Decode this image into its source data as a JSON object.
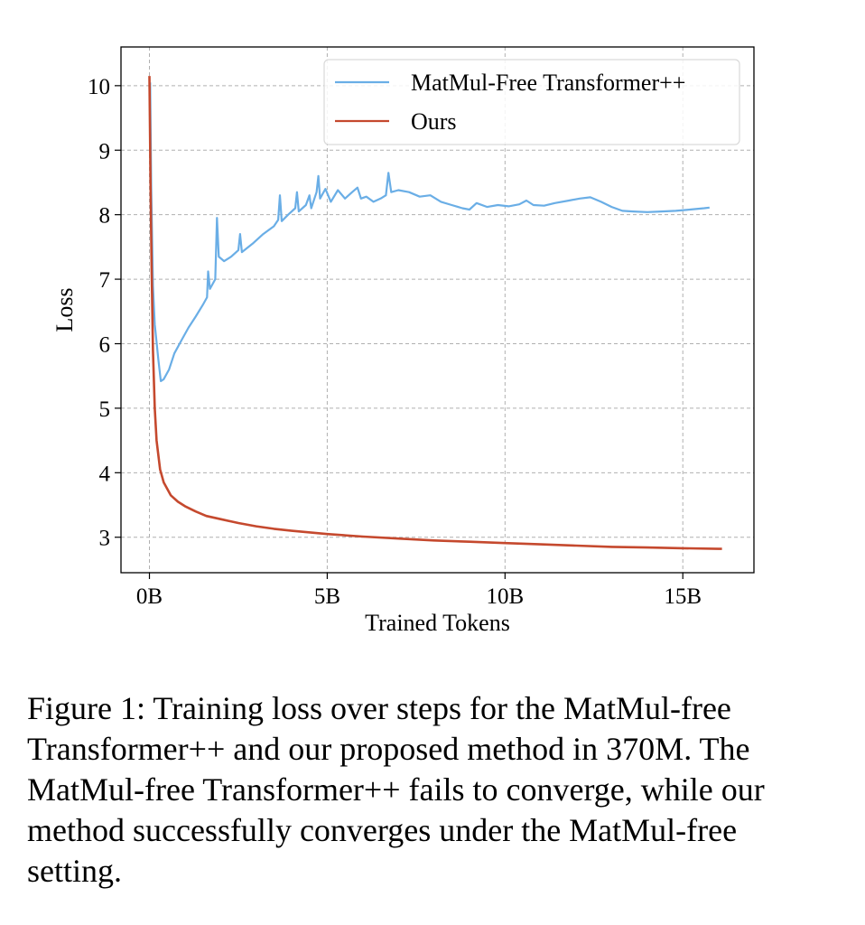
{
  "chart_data": {
    "type": "line",
    "xlabel": "Trained Tokens",
    "ylabel": "Loss",
    "xlim": [
      -0.8,
      17.0
    ],
    "ylim": [
      2.45,
      10.6
    ],
    "x_ticks": [
      0,
      5,
      10,
      15
    ],
    "x_tick_labels": [
      "0B",
      "5B",
      "10B",
      "15B"
    ],
    "y_ticks": [
      3,
      4,
      5,
      6,
      7,
      8,
      9,
      10
    ],
    "y_tick_labels": [
      "3",
      "4",
      "5",
      "6",
      "7",
      "8",
      "9",
      "10"
    ],
    "grid": true,
    "legend_position": "top-right",
    "series": [
      {
        "name": "MatMul-Free Transformer++",
        "color": "#6aaee6",
        "points": [
          [
            0.02,
            10.05
          ],
          [
            0.05,
            8.4
          ],
          [
            0.1,
            6.9
          ],
          [
            0.15,
            6.3
          ],
          [
            0.25,
            5.75
          ],
          [
            0.32,
            5.42
          ],
          [
            0.4,
            5.45
          ],
          [
            0.55,
            5.6
          ],
          [
            0.7,
            5.85
          ],
          [
            0.9,
            6.05
          ],
          [
            1.1,
            6.25
          ],
          [
            1.3,
            6.42
          ],
          [
            1.5,
            6.6
          ],
          [
            1.62,
            6.72
          ],
          [
            1.65,
            7.12
          ],
          [
            1.7,
            6.85
          ],
          [
            1.85,
            7.0
          ],
          [
            1.9,
            7.95
          ],
          [
            1.95,
            7.35
          ],
          [
            2.1,
            7.28
          ],
          [
            2.3,
            7.35
          ],
          [
            2.5,
            7.45
          ],
          [
            2.55,
            7.7
          ],
          [
            2.6,
            7.42
          ],
          [
            2.9,
            7.55
          ],
          [
            3.2,
            7.7
          ],
          [
            3.5,
            7.82
          ],
          [
            3.62,
            7.92
          ],
          [
            3.67,
            8.3
          ],
          [
            3.72,
            7.9
          ],
          [
            3.9,
            8.0
          ],
          [
            4.1,
            8.1
          ],
          [
            4.15,
            8.35
          ],
          [
            4.2,
            8.05
          ],
          [
            4.4,
            8.15
          ],
          [
            4.5,
            8.3
          ],
          [
            4.55,
            8.1
          ],
          [
            4.7,
            8.35
          ],
          [
            4.75,
            8.6
          ],
          [
            4.8,
            8.25
          ],
          [
            4.95,
            8.4
          ],
          [
            5.1,
            8.2
          ],
          [
            5.3,
            8.38
          ],
          [
            5.5,
            8.25
          ],
          [
            5.7,
            8.35
          ],
          [
            5.85,
            8.42
          ],
          [
            5.95,
            8.25
          ],
          [
            6.1,
            8.28
          ],
          [
            6.3,
            8.2
          ],
          [
            6.5,
            8.25
          ],
          [
            6.65,
            8.3
          ],
          [
            6.72,
            8.65
          ],
          [
            6.8,
            8.35
          ],
          [
            7.0,
            8.38
          ],
          [
            7.3,
            8.35
          ],
          [
            7.6,
            8.28
          ],
          [
            7.9,
            8.3
          ],
          [
            8.2,
            8.2
          ],
          [
            8.5,
            8.15
          ],
          [
            8.8,
            8.1
          ],
          [
            9.0,
            8.08
          ],
          [
            9.2,
            8.18
          ],
          [
            9.5,
            8.12
          ],
          [
            9.8,
            8.15
          ],
          [
            10.1,
            8.13
          ],
          [
            10.4,
            8.16
          ],
          [
            10.6,
            8.22
          ],
          [
            10.8,
            8.15
          ],
          [
            11.1,
            8.14
          ],
          [
            11.4,
            8.18
          ],
          [
            11.8,
            8.22
          ],
          [
            12.1,
            8.25
          ],
          [
            12.4,
            8.27
          ],
          [
            12.7,
            8.2
          ],
          [
            13.0,
            8.12
          ],
          [
            13.3,
            8.06
          ],
          [
            13.6,
            8.05
          ],
          [
            14.0,
            8.04
          ],
          [
            14.4,
            8.05
          ],
          [
            14.8,
            8.06
          ],
          [
            15.2,
            8.08
          ],
          [
            15.6,
            8.1
          ],
          [
            15.75,
            8.11
          ]
        ]
      },
      {
        "name": "Ours",
        "color": "#c5492e",
        "points": [
          [
            0.0,
            10.15
          ],
          [
            0.03,
            8.5
          ],
          [
            0.06,
            7.2
          ],
          [
            0.1,
            5.9
          ],
          [
            0.15,
            5.0
          ],
          [
            0.2,
            4.5
          ],
          [
            0.3,
            4.05
          ],
          [
            0.4,
            3.85
          ],
          [
            0.6,
            3.65
          ],
          [
            0.8,
            3.55
          ],
          [
            1.0,
            3.48
          ],
          [
            1.3,
            3.4
          ],
          [
            1.6,
            3.33
          ],
          [
            2.0,
            3.28
          ],
          [
            2.5,
            3.22
          ],
          [
            3.0,
            3.17
          ],
          [
            3.5,
            3.13
          ],
          [
            4.0,
            3.1
          ],
          [
            5.0,
            3.05
          ],
          [
            6.0,
            3.01
          ],
          [
            7.0,
            2.98
          ],
          [
            8.0,
            2.95
          ],
          [
            9.0,
            2.93
          ],
          [
            10.0,
            2.91
          ],
          [
            11.0,
            2.89
          ],
          [
            12.0,
            2.87
          ],
          [
            13.0,
            2.85
          ],
          [
            14.0,
            2.84
          ],
          [
            15.0,
            2.83
          ],
          [
            16.0,
            2.82
          ],
          [
            16.1,
            2.82
          ]
        ]
      }
    ]
  },
  "caption": "Figure 1: Training loss over steps for the MatMul-free Transformer++ and our proposed method in 370M. The MatMul-free Transformer++ fails to converge, while our method successfully converges under the MatMul-free setting."
}
